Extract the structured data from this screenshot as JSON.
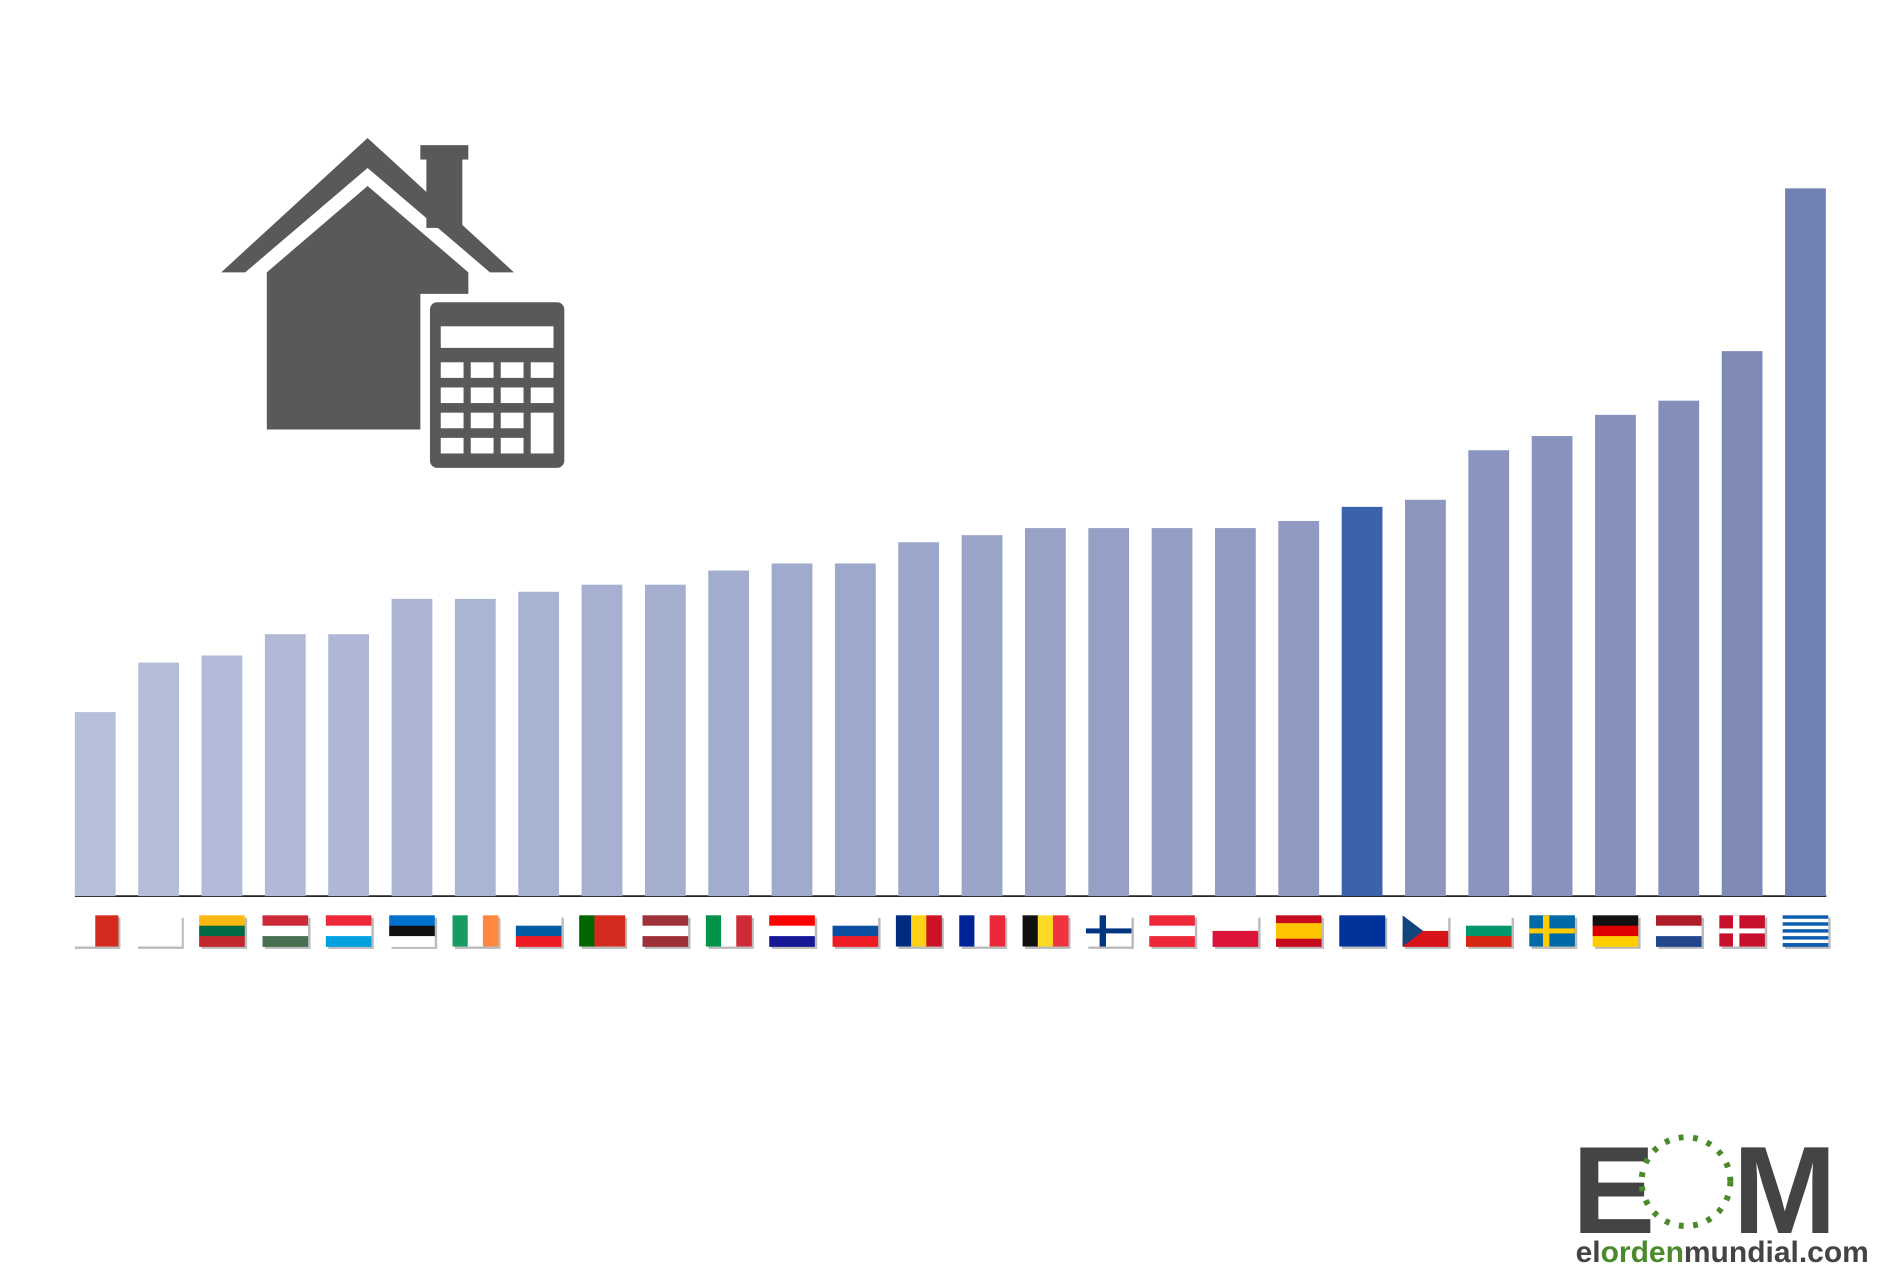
{
  "chart_data": {
    "type": "bar",
    "categories": [
      null,
      null,
      null,
      null,
      null,
      null,
      null,
      null,
      null,
      null,
      null,
      null,
      null,
      null,
      null,
      null,
      null,
      null,
      null,
      null,
      null,
      null,
      null,
      null,
      null,
      null,
      null,
      null
    ],
    "values": [
      26,
      33,
      34,
      37,
      37,
      42,
      42,
      43,
      44,
      44,
      46,
      47,
      47,
      50,
      51,
      52,
      52,
      52,
      52,
      53,
      55,
      56,
      63,
      65,
      68,
      70,
      77,
      100
    ],
    "colors": [
      "#b6c0db",
      "#b4bed9",
      "#b2bcd8",
      "#b0bad7",
      "#aeb8d6",
      "#acb6d4",
      "#aab4d3",
      "#a8b2d2",
      "#a6b0d0",
      "#a4aecf",
      "#a2acce",
      "#a0aacc",
      "#9ea8cb",
      "#9ca6ca",
      "#9aa4c8",
      "#98a2c7",
      "#96a0c6",
      "#949ec4",
      "#929cc3",
      "#909ac2",
      "#3b63ab",
      "#8c96bf",
      "#8a94be",
      "#8892bd",
      "#8690bb",
      "#848eba",
      "#7f89b6",
      "#7180b2"
    ],
    "ylim": [
      0,
      100
    ],
    "logo": {
      "left": "E",
      "right": "M",
      "url_start": "el",
      "url_middle": "orden",
      "url_end": "mundial.com"
    }
  }
}
